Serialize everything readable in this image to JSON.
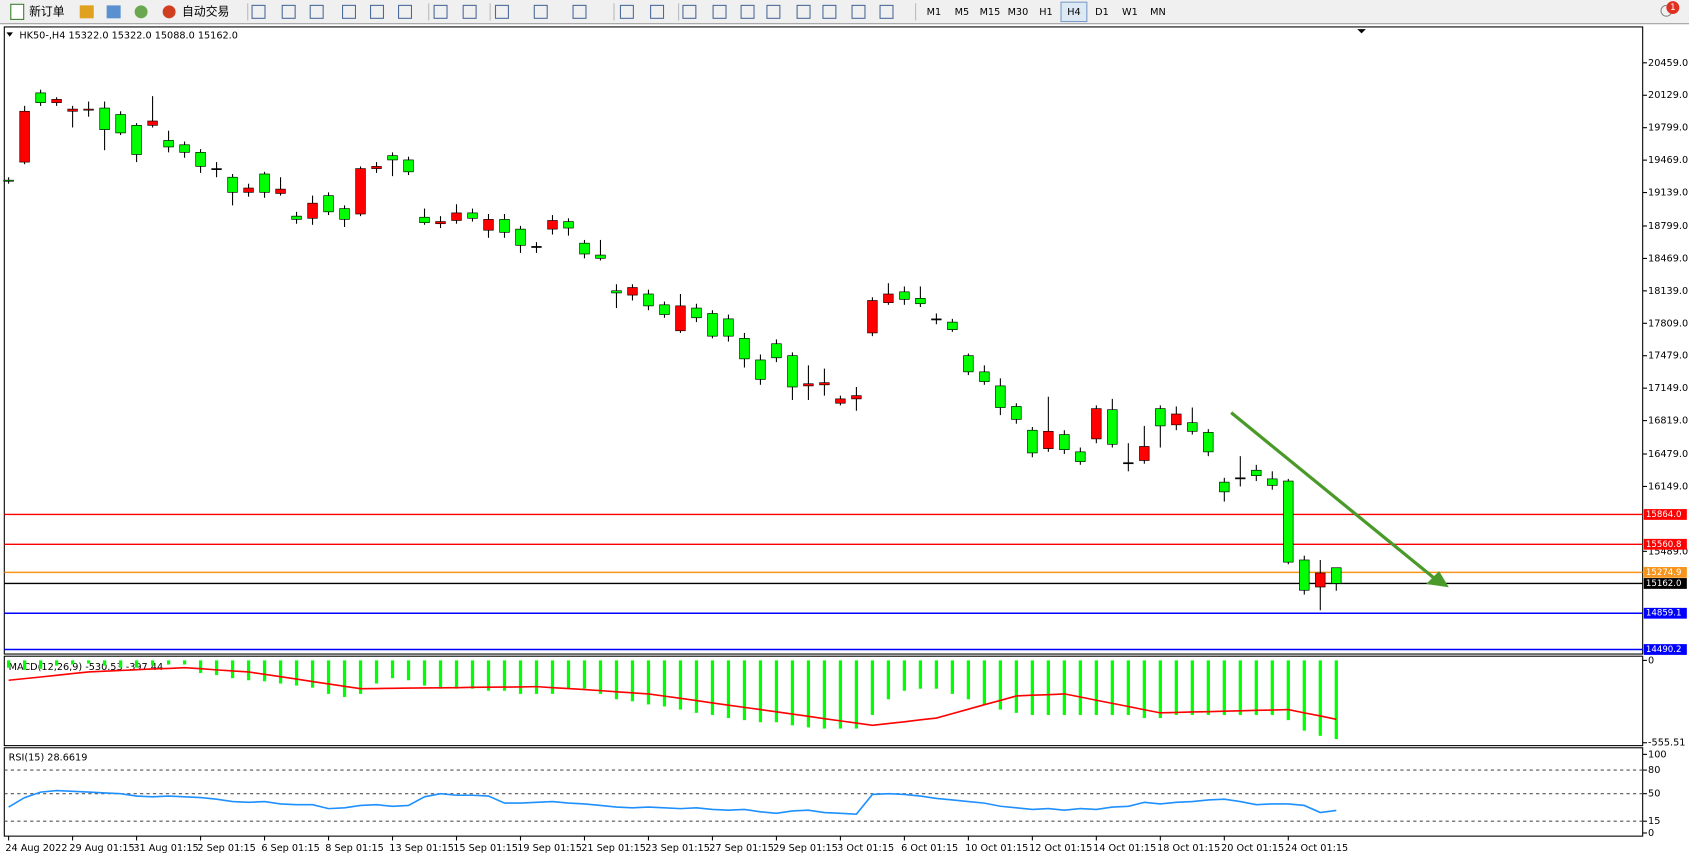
{
  "toolbar": {
    "new_order": "新订单",
    "auto_trading": "自动交易",
    "timeframes": [
      "M1",
      "M5",
      "M15",
      "M30",
      "H1",
      "H4",
      "D1",
      "W1",
      "MN"
    ],
    "notification": "1"
  },
  "chart_data": [
    {
      "type": "candlestick",
      "title": "HK50-,H4 15322.0 15322.0 15088.0 15162.0",
      "categories": [
        "24 Aug 2022",
        null,
        null,
        null,
        "29 Aug 01:15",
        null,
        null,
        null,
        "31 Aug 01:15",
        null,
        null,
        null,
        "2 Sep 01:15",
        null,
        null,
        null,
        "6 Sep 01:15",
        null,
        null,
        null,
        "8 Sep 01:15",
        null,
        null,
        null,
        "13 Sep 01:15",
        null,
        null,
        null,
        "15 Sep 01:15",
        null,
        null,
        null,
        "19 Sep 01:15",
        null,
        null,
        null,
        "21 Sep 01:15",
        null,
        null,
        null,
        "23 Sep 01:15",
        null,
        null,
        null,
        "27 Sep 01:15",
        null,
        null,
        null,
        "29 Sep 01:15",
        null,
        null,
        null,
        "3 Oct 01:15",
        null,
        null,
        null,
        "6 Oct 01:15",
        null,
        null,
        null,
        "10 Oct 01:15",
        null,
        null,
        null,
        "12 Oct 01:15",
        null,
        null,
        null,
        "14 Oct 01:15",
        null,
        null,
        null,
        "18 Oct 01:15",
        null,
        null,
        null,
        "20 Oct 01:15",
        null,
        null,
        null,
        "24 Oct 01:15",
        null,
        null,
        null
      ],
      "open": [
        19265,
        19449,
        20153,
        20054,
        19966,
        19977,
        19999,
        19933,
        19823,
        19823,
        19669,
        19625,
        19548,
        19383,
        19295,
        19141,
        19328,
        19130,
        18899,
        18877,
        19108,
        18976,
        18921,
        19383,
        19515,
        19471,
        18888,
        18822,
        18855,
        18932,
        18756,
        18866,
        18767,
        18591,
        18767,
        18844,
        18624,
        18503,
        18140,
        18096,
        18107,
        17997,
        17733,
        17964,
        17909,
        17854,
        17656,
        17436,
        17601,
        17480,
        17172,
        17183,
        16996,
        17040,
        17711,
        18019,
        18129,
        18063,
        17854,
        17821,
        17480,
        17315,
        17172,
        16963,
        16721,
        16534,
        16677,
        16501,
        16633,
        16930,
        16391,
        16413,
        16941,
        16776,
        16798,
        16699,
        16193,
        16237,
        16314,
        16226,
        16204,
        15401,
        15126,
        15322
      ],
      "high": [
        19295,
        20021,
        20186,
        20109,
        20021,
        20065,
        20065,
        19966,
        19845,
        20120,
        19768,
        19658,
        19581,
        19449,
        19328,
        19229,
        19350,
        19295,
        18943,
        19108,
        19141,
        19009,
        19405,
        19449,
        19548,
        19504,
        18976,
        18899,
        19020,
        18976,
        18921,
        18921,
        18800,
        18635,
        18910,
        18877,
        18657,
        18657,
        18206,
        18206,
        18151,
        18030,
        18107,
        18008,
        17942,
        17898,
        17711,
        17491,
        17645,
        17513,
        17381,
        17348,
        17073,
        17161,
        18074,
        18217,
        18184,
        18184,
        17909,
        17854,
        17502,
        17381,
        17249,
        16996,
        16754,
        17062,
        16721,
        16545,
        16974,
        17040,
        16589,
        16765,
        16974,
        16963,
        16952,
        16732,
        16237,
        16457,
        16369,
        16303,
        16226,
        15445,
        15401,
        15322
      ],
      "low": [
        19229,
        19427,
        20021,
        20021,
        19801,
        19911,
        19570,
        19724,
        19449,
        19801,
        19548,
        19493,
        19339,
        19295,
        19009,
        19097,
        19086,
        19108,
        18822,
        18811,
        18910,
        18789,
        18899,
        19339,
        19306,
        19317,
        18811,
        18778,
        18822,
        18844,
        18679,
        18679,
        18525,
        18525,
        18712,
        18701,
        18470,
        18448,
        17964,
        18041,
        17942,
        17865,
        17711,
        17821,
        17656,
        17623,
        17359,
        17183,
        17414,
        17029,
        17029,
        17073,
        16974,
        16919,
        17678,
        17997,
        17997,
        17975,
        17799,
        17722,
        17282,
        17183,
        16875,
        16787,
        16446,
        16501,
        16479,
        16369,
        16589,
        16545,
        16303,
        16380,
        16545,
        16721,
        16677,
        16457,
        15995,
        16149,
        16204,
        16116,
        15357,
        15049,
        14889,
        15088
      ],
      "close": [
        19260,
        19966,
        20054,
        20087,
        19988,
        19988,
        19779,
        19746,
        19526,
        19867,
        19603,
        19548,
        19405,
        19383,
        19141,
        19185,
        19141,
        19174,
        18866,
        19031,
        18943,
        18866,
        19383,
        19405,
        19471,
        19350,
        18833,
        18844,
        18932,
        18877,
        18866,
        18734,
        18602,
        18591,
        18855,
        18778,
        18514,
        18470,
        18118,
        18173,
        17986,
        17898,
        17986,
        17865,
        17678,
        17678,
        17447,
        17238,
        17458,
        17161,
        17194,
        17205,
        17040,
        17073,
        18041,
        18107,
        18052,
        18008,
        17854,
        17744,
        17315,
        17216,
        16952,
        16831,
        16490,
        16710,
        16523,
        16402,
        16941,
        16578,
        16391,
        16556,
        16765,
        16886,
        16710,
        16501,
        16094,
        16237,
        16259,
        16160,
        15379,
        15093,
        15269,
        15162
      ],
      "up_color": "#ff0000",
      "down_color": "#00ff00",
      "ylim": [
        14444,
        20824
      ],
      "yticks": [
        {
          "value": 20459,
          "label": "20459.0"
        },
        {
          "value": 20129,
          "label": "20129.0"
        },
        {
          "value": 19799,
          "label": "19799.0"
        },
        {
          "value": 19469,
          "label": "19469.0"
        },
        {
          "value": 19139,
          "label": "19139.0"
        },
        {
          "value": 18799,
          "label": "18799.0"
        },
        {
          "value": 18469,
          "label": "18469.0"
        },
        {
          "value": 18139,
          "label": "18139.0"
        },
        {
          "value": 17809,
          "label": "17809.0"
        },
        {
          "value": 17479,
          "label": "17479.0"
        },
        {
          "value": 17149,
          "label": "17149.0"
        },
        {
          "value": 16819,
          "label": "16819.0"
        },
        {
          "value": 16479,
          "label": "16479.0"
        },
        {
          "value": 16149,
          "label": "16149.0"
        },
        {
          "value": 15489,
          "label": "15489.0"
        }
      ],
      "levels": [
        {
          "value": 15864,
          "label": "15864.0",
          "color": "#ff0000"
        },
        {
          "value": 15560.8,
          "label": "15560.8",
          "color": "#ff0000"
        },
        {
          "value": 15274.9,
          "label": "15274.9",
          "color": "#f7941d"
        },
        {
          "value": 15162,
          "label": "15162.0",
          "color": "#000000"
        },
        {
          "value": 14859.1,
          "label": "14859.1",
          "color": "#0000ff"
        },
        {
          "value": 14490.2,
          "label": "14490.2",
          "color": "#0000ff"
        }
      ]
    },
    {
      "type": "macd",
      "title": "MACD(12,26,9) -530.53 -397.44",
      "histogram": {
        "color": "#00ff00",
        "values": [
          -49,
          -64,
          -57,
          -35,
          -28,
          -21,
          -35,
          -49,
          -49,
          -35,
          -28,
          -28,
          -85,
          -99,
          -120,
          -134,
          -141,
          -156,
          -170,
          -184,
          -226,
          -247,
          -226,
          -156,
          -120,
          -134,
          -170,
          -191,
          -191,
          -191,
          -205,
          -205,
          -226,
          -226,
          -226,
          -191,
          -191,
          -226,
          -262,
          -276,
          -297,
          -311,
          -332,
          -354,
          -368,
          -389,
          -403,
          -417,
          -417,
          -438,
          -452,
          -460,
          -460,
          -460,
          -368,
          -262,
          -205,
          -191,
          -191,
          -226,
          -262,
          -297,
          -332,
          -354,
          -368,
          -368,
          -368,
          -368,
          -368,
          -368,
          -368,
          -389,
          -389,
          -368,
          -368,
          -368,
          -368,
          -368,
          -368,
          -368,
          -403,
          -474,
          -509,
          -530.53
        ]
      },
      "signal": {
        "color": "#ff0000",
        "values": [
          -134,
          -123,
          -112,
          -101,
          -89,
          -78,
          -73,
          -68,
          -63,
          -58,
          -54,
          -49,
          -56,
          -64,
          -71,
          -78,
          -94,
          -110,
          -126,
          -143,
          -159,
          -175,
          -191,
          -190,
          -188,
          -187,
          -186,
          -185,
          -184,
          -182,
          -181,
          -180,
          -179,
          -177,
          -184,
          -190,
          -197,
          -204,
          -212,
          -219,
          -226,
          -241,
          -256,
          -271,
          -287,
          -302,
          -317,
          -332,
          -347,
          -362,
          -377,
          -393,
          -408,
          -423,
          -438,
          -426,
          -414,
          -401,
          -389,
          -359,
          -329,
          -299,
          -270,
          -240,
          -235,
          -231,
          -226,
          -247,
          -269,
          -290,
          -311,
          -333,
          -354,
          -351,
          -348,
          -346,
          -343,
          -340,
          -337,
          -335,
          -332,
          -354,
          -375,
          -397.44
        ]
      },
      "ylim": [
        -575,
        21
      ],
      "yticks": [
        0,
        -555.51
      ]
    },
    {
      "type": "line",
      "title": "RSI(15) 28.6619",
      "color": "#1e90ff",
      "values": [
        33,
        45,
        52,
        54,
        53,
        52,
        51,
        50,
        47,
        46,
        47,
        46,
        45,
        43,
        40,
        39,
        40,
        37,
        36,
        36,
        31,
        32,
        35,
        36,
        34,
        35,
        46,
        50,
        48,
        48,
        47,
        38,
        38,
        39,
        40,
        38,
        37,
        35,
        33,
        32,
        33,
        32,
        31,
        32,
        30,
        29,
        30,
        27,
        25,
        28,
        29,
        26,
        25,
        24,
        49,
        50,
        49,
        47,
        44,
        42,
        40,
        38,
        34,
        32,
        30,
        31,
        29,
        31,
        30,
        33,
        34,
        39,
        37,
        39,
        40,
        42,
        43,
        40,
        36,
        37,
        37,
        35,
        26,
        28.6619
      ],
      "ylim": [
        -4,
        107
      ],
      "yticks": [
        100,
        80,
        50,
        15,
        0
      ],
      "levels": [
        80,
        50,
        15
      ]
    }
  ]
}
